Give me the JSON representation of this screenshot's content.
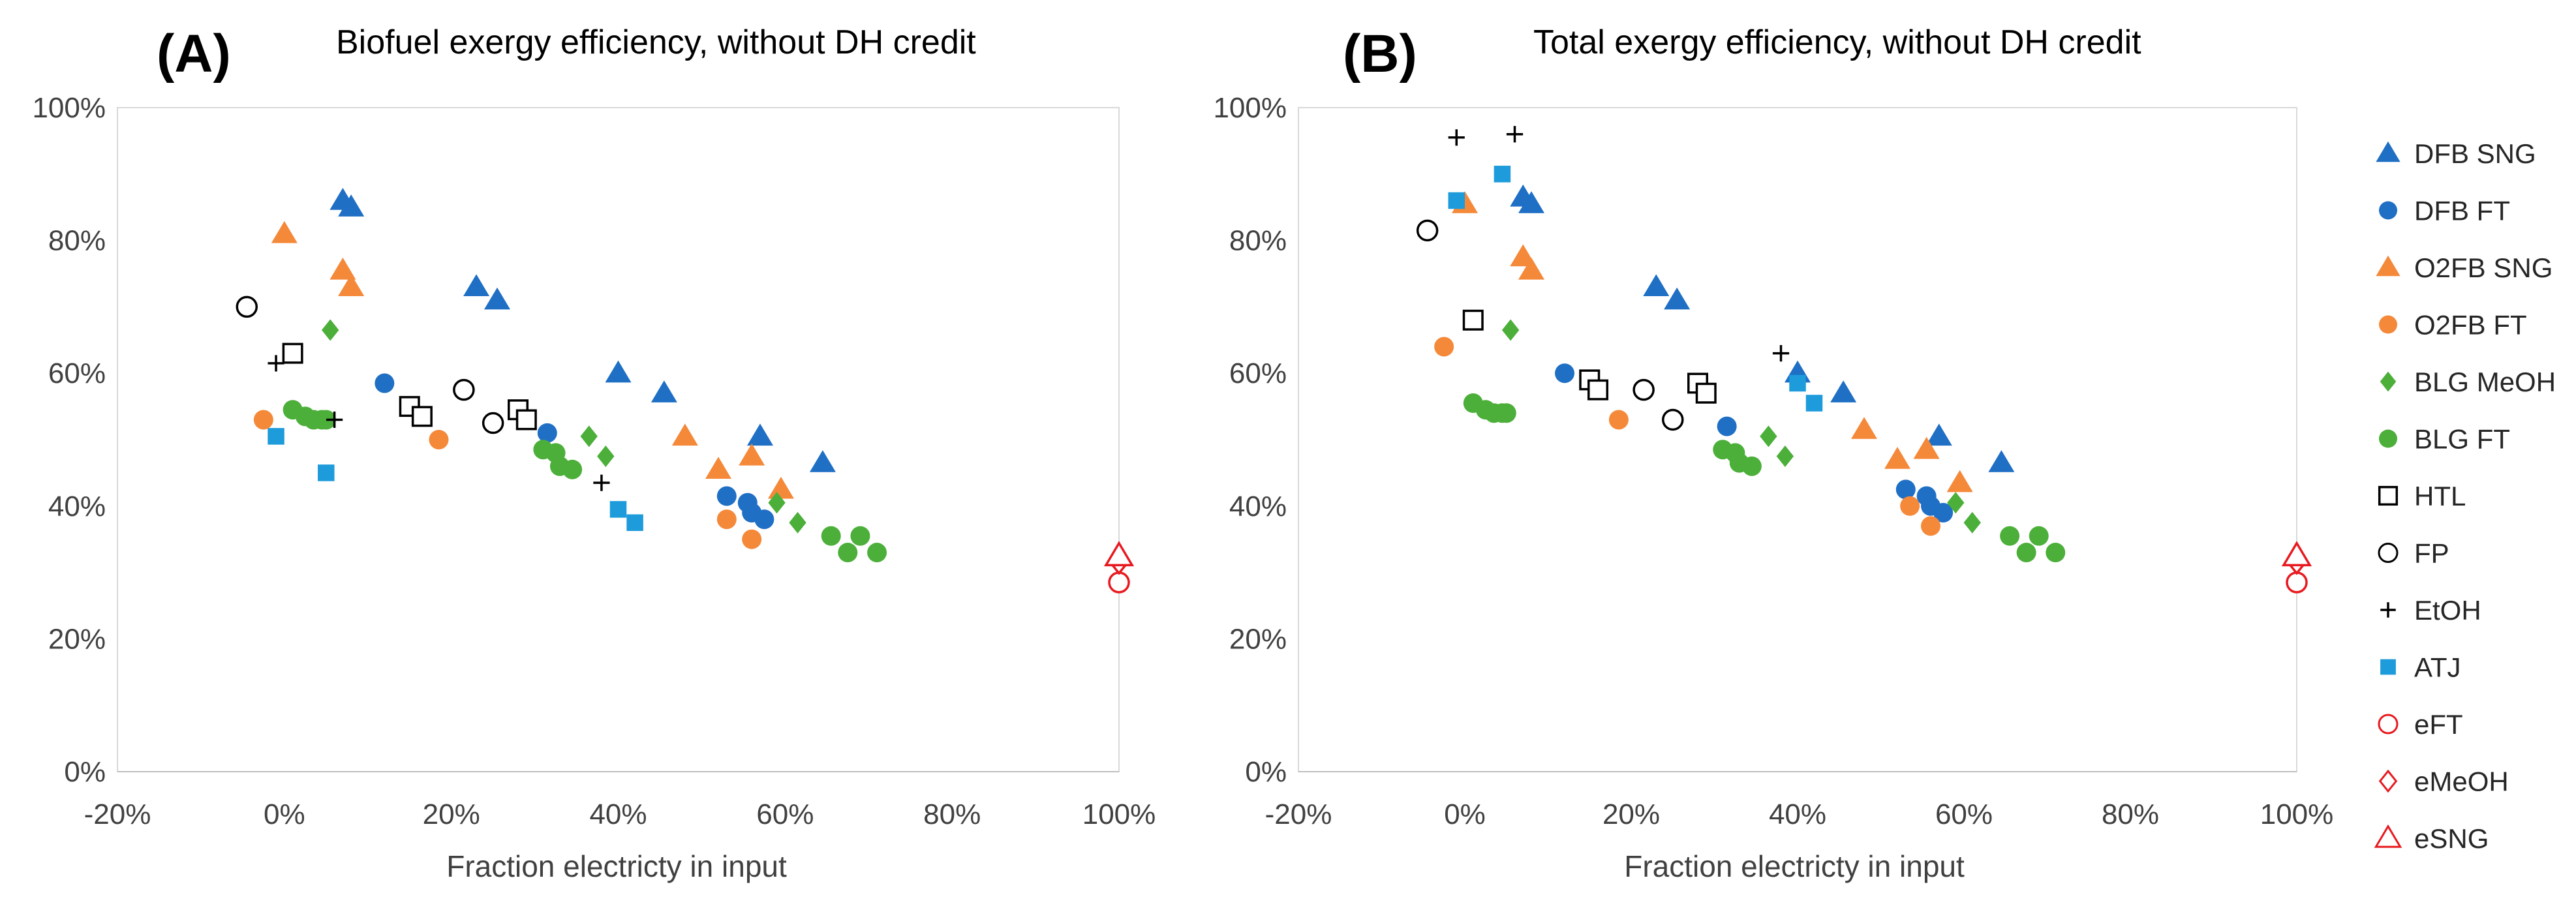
{
  "chart_data": [
    {
      "type": "scatter",
      "panel": "(A)",
      "title": "Biofuel exergy efficiency, without DH credit",
      "xlabel": "Fraction electricty in input",
      "ylabel": "",
      "xlim": [
        -0.2,
        1.0
      ],
      "ylim": [
        0,
        1.0
      ],
      "xticks": [
        "-20%",
        "0%",
        "20%",
        "40%",
        "60%",
        "80%",
        "100%"
      ],
      "yticks": [
        "0%",
        "20%",
        "40%",
        "60%",
        "80%",
        "100%"
      ],
      "grid": false,
      "series": [
        {
          "name": "DFB SNG",
          "points": [
            [
              0.07,
              0.86
            ],
            [
              0.08,
              0.85
            ],
            [
              0.23,
              0.73
            ],
            [
              0.255,
              0.71
            ],
            [
              0.4,
              0.6
            ],
            [
              0.455,
              0.57
            ],
            [
              0.57,
              0.505
            ],
            [
              0.645,
              0.465
            ]
          ]
        },
        {
          "name": "DFB FT",
          "points": [
            [
              0.12,
              0.585
            ],
            [
              0.315,
              0.51
            ],
            [
              0.53,
              0.415
            ],
            [
              0.555,
              0.405
            ],
            [
              0.56,
              0.39
            ],
            [
              0.575,
              0.38
            ]
          ]
        },
        {
          "name": "O2FB SNG",
          "points": [
            [
              0.0,
              0.81
            ],
            [
              0.07,
              0.755
            ],
            [
              0.08,
              0.73
            ],
            [
              0.48,
              0.505
            ],
            [
              0.52,
              0.455
            ],
            [
              0.56,
              0.475
            ],
            [
              0.595,
              0.425
            ]
          ]
        },
        {
          "name": "O2FB FT",
          "points": [
            [
              -0.025,
              0.53
            ],
            [
              0.185,
              0.5
            ],
            [
              0.53,
              0.38
            ],
            [
              0.56,
              0.35
            ]
          ]
        },
        {
          "name": "BLG MeOH",
          "points": [
            [
              0.055,
              0.665
            ],
            [
              0.365,
              0.505
            ],
            [
              0.385,
              0.475
            ],
            [
              0.59,
              0.405
            ],
            [
              0.615,
              0.375
            ]
          ]
        },
        {
          "name": "BLG FT",
          "points": [
            [
              0.01,
              0.545
            ],
            [
              0.025,
              0.535
            ],
            [
              0.035,
              0.53
            ],
            [
              0.045,
              0.53
            ],
            [
              0.05,
              0.53
            ],
            [
              0.31,
              0.485
            ],
            [
              0.325,
              0.48
            ],
            [
              0.33,
              0.46
            ],
            [
              0.345,
              0.455
            ],
            [
              0.655,
              0.355
            ],
            [
              0.675,
              0.33
            ],
            [
              0.69,
              0.355
            ],
            [
              0.71,
              0.33
            ]
          ]
        },
        {
          "name": "HTL",
          "points": [
            [
              0.01,
              0.63
            ],
            [
              0.15,
              0.55
            ],
            [
              0.165,
              0.535
            ],
            [
              0.28,
              0.545
            ],
            [
              0.29,
              0.53
            ]
          ]
        },
        {
          "name": "FP",
          "points": [
            [
              -0.045,
              0.7
            ],
            [
              0.215,
              0.575
            ],
            [
              0.25,
              0.525
            ]
          ]
        },
        {
          "name": "EtOH",
          "points": [
            [
              -0.01,
              0.615
            ],
            [
              0.06,
              0.53
            ],
            [
              0.38,
              0.435
            ]
          ]
        },
        {
          "name": "ATJ",
          "points": [
            [
              -0.01,
              0.505
            ],
            [
              0.05,
              0.45
            ],
            [
              0.4,
              0.395
            ],
            [
              0.42,
              0.375
            ]
          ]
        },
        {
          "name": "eFT",
          "points": [
            [
              1.0,
              0.285
            ]
          ]
        },
        {
          "name": "eMeOH",
          "points": [
            [
              1.0,
              0.315
            ]
          ]
        },
        {
          "name": "eSNG",
          "points": [
            [
              1.0,
              0.325
            ]
          ]
        }
      ]
    },
    {
      "type": "scatter",
      "panel": "(B)",
      "title": "Total exergy efficiency, without DH credit",
      "xlabel": "Fraction electricty in input",
      "ylabel": "",
      "xlim": [
        -0.2,
        1.0
      ],
      "ylim": [
        0,
        1.0
      ],
      "xticks": [
        "-20%",
        "0%",
        "20%",
        "40%",
        "60%",
        "80%",
        "100%"
      ],
      "yticks": [
        "0%",
        "20%",
        "40%",
        "60%",
        "80%",
        "100%"
      ],
      "grid": false,
      "series": [
        {
          "name": "DFB SNG",
          "points": [
            [
              0.07,
              0.865
            ],
            [
              0.08,
              0.855
            ],
            [
              0.23,
              0.73
            ],
            [
              0.255,
              0.71
            ],
            [
              0.4,
              0.6
            ],
            [
              0.455,
              0.57
            ],
            [
              0.57,
              0.505
            ],
            [
              0.645,
              0.465
            ]
          ]
        },
        {
          "name": "DFB FT",
          "points": [
            [
              0.12,
              0.6
            ],
            [
              0.315,
              0.52
            ],
            [
              0.53,
              0.425
            ],
            [
              0.555,
              0.415
            ],
            [
              0.56,
              0.4
            ],
            [
              0.575,
              0.39
            ]
          ]
        },
        {
          "name": "O2FB SNG",
          "points": [
            [
              0.0,
              0.855
            ],
            [
              0.07,
              0.775
            ],
            [
              0.08,
              0.755
            ],
            [
              0.48,
              0.515
            ],
            [
              0.52,
              0.47
            ],
            [
              0.555,
              0.485
            ],
            [
              0.595,
              0.435
            ]
          ]
        },
        {
          "name": "O2FB FT",
          "points": [
            [
              -0.025,
              0.64
            ],
            [
              0.185,
              0.53
            ],
            [
              0.535,
              0.4
            ],
            [
              0.56,
              0.37
            ]
          ]
        },
        {
          "name": "BLG MeOH",
          "points": [
            [
              0.055,
              0.665
            ],
            [
              0.365,
              0.505
            ],
            [
              0.385,
              0.475
            ],
            [
              0.59,
              0.405
            ],
            [
              0.61,
              0.375
            ]
          ]
        },
        {
          "name": "BLG FT",
          "points": [
            [
              0.01,
              0.555
            ],
            [
              0.025,
              0.545
            ],
            [
              0.035,
              0.54
            ],
            [
              0.045,
              0.54
            ],
            [
              0.05,
              0.54
            ],
            [
              0.31,
              0.485
            ],
            [
              0.325,
              0.48
            ],
            [
              0.33,
              0.465
            ],
            [
              0.345,
              0.46
            ],
            [
              0.655,
              0.355
            ],
            [
              0.675,
              0.33
            ],
            [
              0.69,
              0.355
            ],
            [
              0.71,
              0.33
            ]
          ]
        },
        {
          "name": "HTL",
          "points": [
            [
              0.01,
              0.68
            ],
            [
              0.15,
              0.59
            ],
            [
              0.16,
              0.575
            ],
            [
              0.28,
              0.585
            ],
            [
              0.29,
              0.57
            ]
          ]
        },
        {
          "name": "FP",
          "points": [
            [
              -0.045,
              0.815
            ],
            [
              0.215,
              0.575
            ],
            [
              0.25,
              0.53
            ]
          ]
        },
        {
          "name": "EtOH",
          "points": [
            [
              -0.01,
              0.955
            ],
            [
              0.06,
              0.96
            ],
            [
              0.38,
              0.63
            ]
          ]
        },
        {
          "name": "ATJ",
          "points": [
            [
              -0.01,
              0.86
            ],
            [
              0.045,
              0.9
            ],
            [
              0.4,
              0.585
            ],
            [
              0.42,
              0.555
            ]
          ]
        },
        {
          "name": "eFT",
          "points": [
            [
              1.0,
              0.285
            ]
          ]
        },
        {
          "name": "eMeOH",
          "points": [
            [
              1.0,
              0.315
            ]
          ]
        },
        {
          "name": "eSNG",
          "points": [
            [
              1.0,
              0.325
            ]
          ]
        }
      ]
    }
  ],
  "legend": {
    "placement": "right",
    "entries": [
      {
        "name": "DFB SNG",
        "marker": "triangle",
        "color": "#1F6FC5",
        "filled": true
      },
      {
        "name": "DFB FT",
        "marker": "circle",
        "color": "#1F6FC5",
        "filled": true
      },
      {
        "name": "O2FB SNG",
        "marker": "triangle",
        "color": "#F5893A",
        "filled": true
      },
      {
        "name": "O2FB FT",
        "marker": "circle",
        "color": "#F5893A",
        "filled": true
      },
      {
        "name": "BLG MeOH",
        "marker": "diamond",
        "color": "#4CAF3A",
        "filled": true
      },
      {
        "name": "BLG FT",
        "marker": "circle",
        "color": "#4CAF3A",
        "filled": true
      },
      {
        "name": "HTL",
        "marker": "square",
        "color": "#000000",
        "filled": false
      },
      {
        "name": "FP",
        "marker": "circle",
        "color": "#000000",
        "filled": false
      },
      {
        "name": "EtOH",
        "marker": "plus",
        "color": "#000000",
        "filled": false
      },
      {
        "name": "ATJ",
        "marker": "square",
        "color": "#1E9BDB",
        "filled": true
      },
      {
        "name": "eFT",
        "marker": "circle",
        "color": "#E8191F",
        "filled": false
      },
      {
        "name": "eMeOH",
        "marker": "diamond",
        "color": "#E8191F",
        "filled": false
      },
      {
        "name": "eSNG",
        "marker": "triangle",
        "color": "#E8191F",
        "filled": false
      }
    ]
  }
}
